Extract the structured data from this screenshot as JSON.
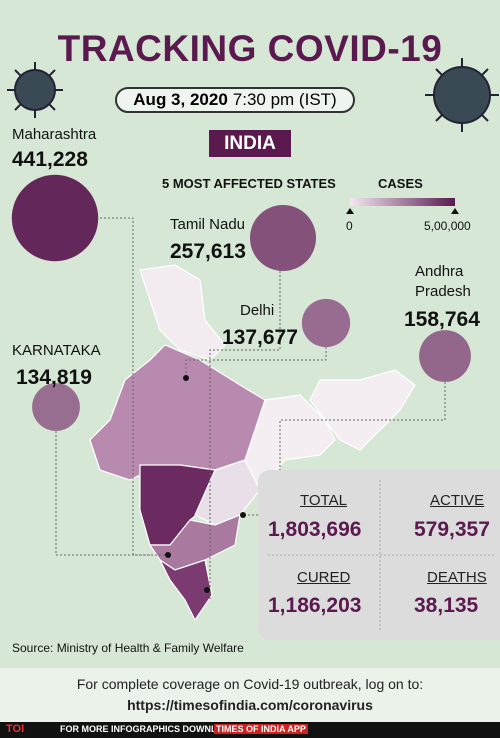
{
  "header": {
    "title": "TRACKING COVID-19",
    "date": "Aug 3, 2020",
    "time": "7:30 pm (IST)",
    "country": "INDIA"
  },
  "legend": {
    "title": "5 MOST AFFECTED STATES",
    "scale_title": "CASES",
    "scale_min": {
      "value": 0,
      "label": "0"
    },
    "scale_max": {
      "value": 500000,
      "label": "5,00,000"
    }
  },
  "states": [
    {
      "name": "Maharashtra",
      "cases": 441228,
      "label": "441,228"
    },
    {
      "name": "Tamil Nadu",
      "cases": 257613,
      "label": "257,613"
    },
    {
      "name": "Delhi",
      "cases": 137677,
      "label": "137,677"
    },
    {
      "name": "Andhra Pradesh",
      "cases": 158764,
      "label": "158,764"
    },
    {
      "name": "KARNATAKA",
      "cases": 134819,
      "label": "134,819"
    }
  ],
  "totals": [
    {
      "name": "TOTAL",
      "label": "1,803,696"
    },
    {
      "name": "ACTIVE",
      "label": "579,357"
    },
    {
      "name": "CURED",
      "label": "1,186,203"
    },
    {
      "name": "DEATHS",
      "label": "38,135"
    }
  ],
  "source": "Source: Ministry of Health & Family Welfare",
  "footer": {
    "note": "For complete coverage on Covid-19 outbreak, log on to:",
    "url": "https://timesofindia.com/coronavirus",
    "brand": "TOI",
    "bar": "FOR MORE  INFOGRAPHICS DOWNLOAD",
    "app": "TIMES OF INDIA APP"
  }
}
